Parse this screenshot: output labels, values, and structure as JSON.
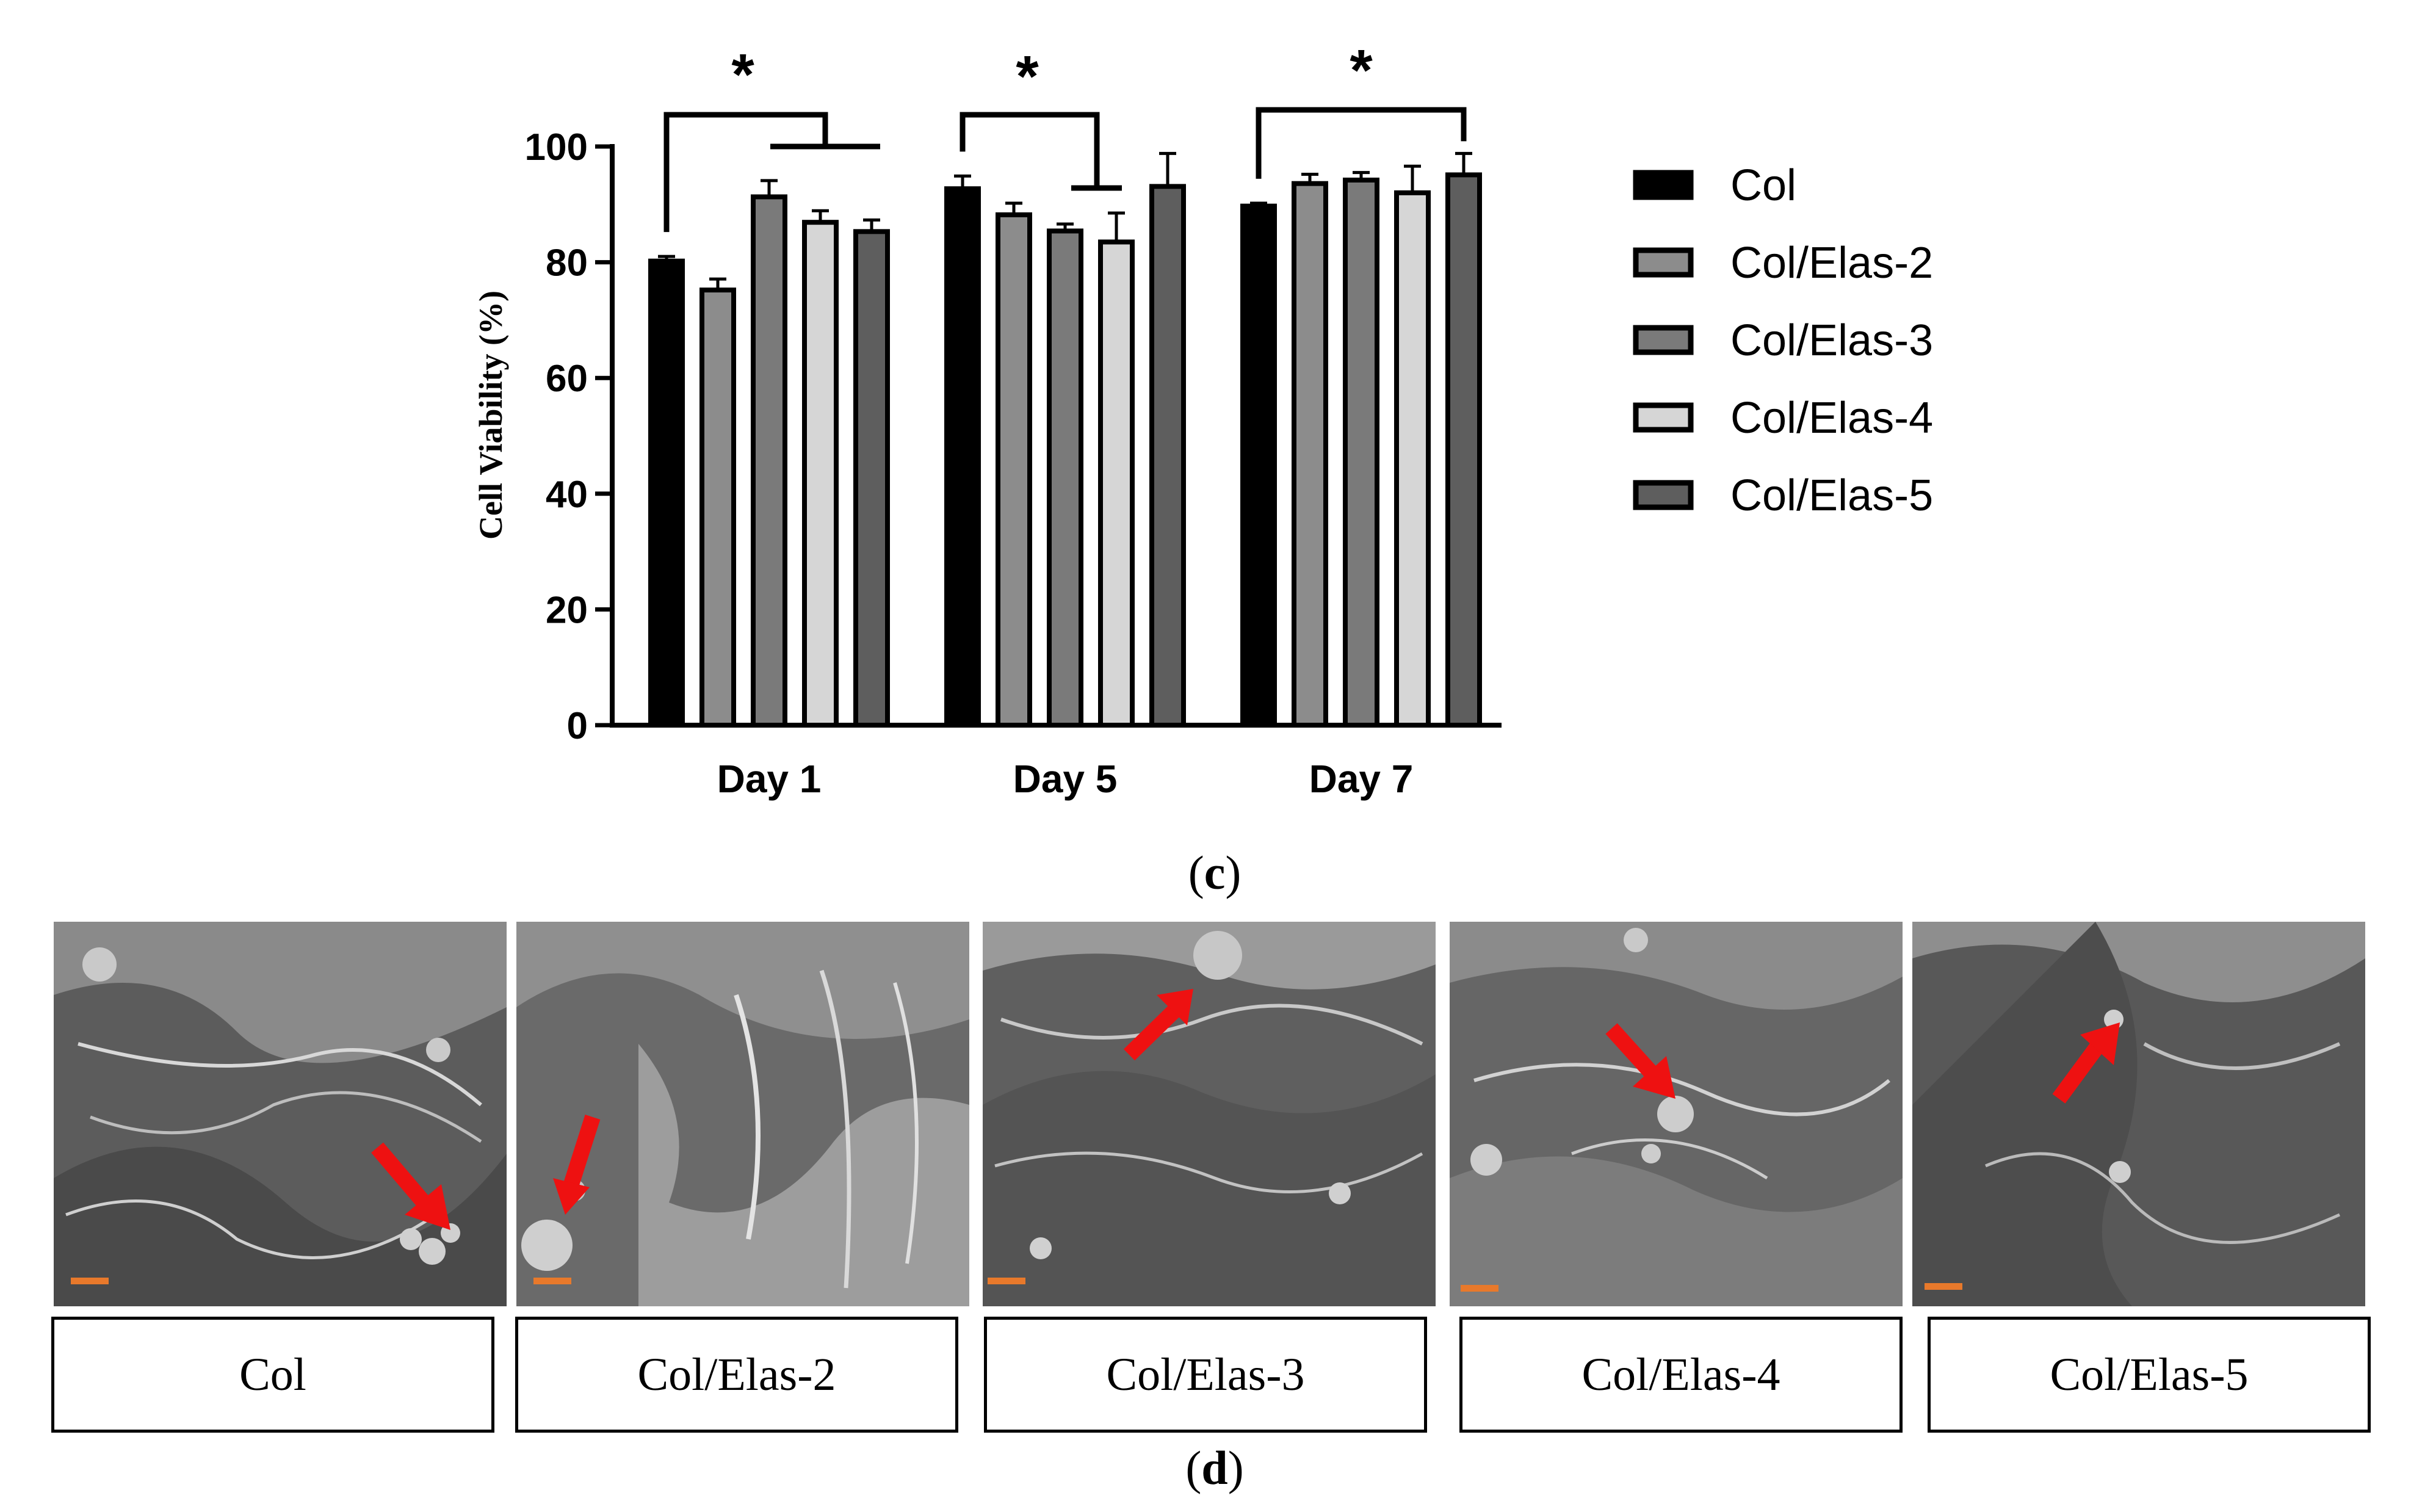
{
  "panel_c_label": "c",
  "panel_d_label": "d",
  "chart_data": {
    "type": "bar",
    "title": "",
    "xlabel": "",
    "ylabel": "Cell Viability (%)",
    "ylim": [
      0,
      100
    ],
    "yticks": [
      "0",
      "20",
      "40",
      "60",
      "80",
      "100"
    ],
    "categories": [
      "Day 1",
      "Day 5",
      "Day 7"
    ],
    "grid": false,
    "legend_position": "right",
    "series": [
      {
        "name": "Col",
        "values": [
          80.2,
          92.7,
          89.7
        ],
        "errors": [
          0.8,
          2.2,
          0.5
        ],
        "color": "#000000"
      },
      {
        "name": "Col/Elas-2",
        "values": [
          75.2,
          88.2,
          93.6
        ],
        "errors": [
          1.9,
          2.0,
          1.6
        ],
        "color": "#8c8c8c"
      },
      {
        "name": "Col/Elas-3",
        "values": [
          91.3,
          85.4,
          94.2
        ],
        "errors": [
          2.8,
          1.2,
          1.3
        ],
        "color": "#7a7a7a"
      },
      {
        "name": "Col/Elas-4",
        "values": [
          86.9,
          83.5,
          92.0
        ],
        "errors": [
          2.0,
          5.0,
          4.6
        ],
        "color": "#d6d6d6"
      },
      {
        "name": "Col/Elas-5",
        "values": [
          85.3,
          93.1,
          95.1
        ],
        "errors": [
          2.0,
          5.7,
          3.7
        ],
        "color": "#5e5e5e"
      }
    ],
    "annotations": [
      {
        "text": "*",
        "group": "Day 1"
      },
      {
        "text": "*",
        "group": "Day 5"
      },
      {
        "text": "*",
        "group": "Day 7"
      }
    ]
  },
  "sem_panels": [
    {
      "label": "Col"
    },
    {
      "label": "Col/Elas-2"
    },
    {
      "label": "Col/Elas-3"
    },
    {
      "label": "Col/Elas-4"
    },
    {
      "label": "Col/Elas-5"
    }
  ],
  "colors": {
    "arrow": "#ee1111",
    "scale_bar": "#e8792b",
    "axis": "#000000"
  }
}
